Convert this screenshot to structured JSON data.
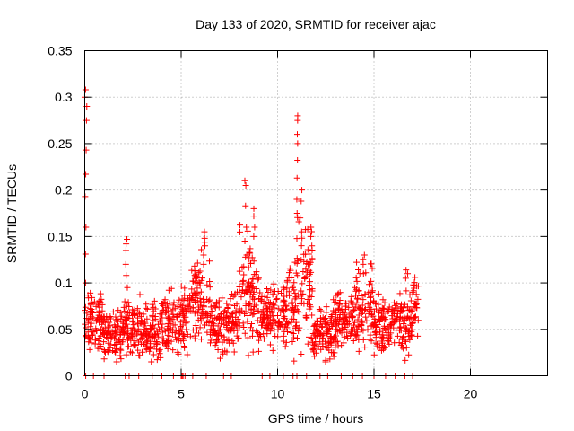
{
  "chart_data": {
    "type": "scatter",
    "title": "Day 133 of 2020, SRMTID for receiver ajac",
    "xlabel": "GPS time / hours",
    "ylabel": "SRMTID / TECUs",
    "xlim": [
      0,
      24
    ],
    "ylim": [
      0,
      0.35
    ],
    "x_ticks": [
      0,
      5,
      10,
      15,
      20
    ],
    "x_tick_labels": [
      "0",
      "5",
      "10",
      "15",
      "20"
    ],
    "y_ticks": [
      0,
      0.05,
      0.1,
      0.15,
      0.2,
      0.25,
      0.3,
      0.35
    ],
    "y_tick_labels": [
      "0",
      "0.05",
      "0.1",
      "0.15",
      "0.2",
      "0.25",
      "0.3",
      "0.35"
    ],
    "grid": true,
    "marker": "plus",
    "color": "#ff0000",
    "series": [
      {
        "name": "SRMTID",
        "segments": [
          {
            "x0": 0.0,
            "x1": 1.0,
            "base": 0.055,
            "spread": 0.022
          },
          {
            "x0": 1.0,
            "x1": 2.0,
            "base": 0.045,
            "spread": 0.02
          },
          {
            "x0": 2.0,
            "x1": 3.0,
            "base": 0.05,
            "spread": 0.022
          },
          {
            "x0": 3.0,
            "x1": 4.0,
            "base": 0.048,
            "spread": 0.022
          },
          {
            "x0": 4.0,
            "x1": 5.0,
            "base": 0.055,
            "spread": 0.022
          },
          {
            "x0": 5.0,
            "x1": 5.5,
            "base": 0.065,
            "spread": 0.028
          },
          {
            "x0": 5.5,
            "x1": 6.5,
            "base": 0.08,
            "spread": 0.035
          },
          {
            "x0": 6.5,
            "x1": 7.5,
            "base": 0.055,
            "spread": 0.02
          },
          {
            "x0": 7.5,
            "x1": 8.0,
            "base": 0.06,
            "spread": 0.022
          },
          {
            "x0": 8.0,
            "x1": 9.0,
            "base": 0.09,
            "spread": 0.04
          },
          {
            "x0": 9.0,
            "x1": 10.5,
            "base": 0.065,
            "spread": 0.022
          },
          {
            "x0": 10.5,
            "x1": 11.0,
            "base": 0.075,
            "spread": 0.03
          },
          {
            "x0": 11.0,
            "x1": 11.8,
            "base": 0.1,
            "spread": 0.05
          },
          {
            "x0": 11.8,
            "x1": 13.0,
            "base": 0.045,
            "spread": 0.02
          },
          {
            "x0": 13.0,
            "x1": 14.0,
            "base": 0.06,
            "spread": 0.02
          },
          {
            "x0": 14.0,
            "x1": 15.0,
            "base": 0.07,
            "spread": 0.03
          },
          {
            "x0": 15.0,
            "x1": 16.0,
            "base": 0.055,
            "spread": 0.022
          },
          {
            "x0": 16.0,
            "x1": 17.0,
            "base": 0.06,
            "spread": 0.025
          },
          {
            "x0": 17.0,
            "x1": 17.3,
            "base": 0.075,
            "spread": 0.03
          }
        ],
        "peaks": [
          {
            "x": 0.05,
            "y": [
              0.308,
              0.3,
              0.29,
              0.275,
              0.243,
              0.217,
              0.193,
              0.16,
              0.131,
              0.1
            ]
          },
          {
            "x": 2.15,
            "y": [
              0.147,
              0.142,
              0.135,
              0.12,
              0.108,
              0.095
            ]
          },
          {
            "x": 6.2,
            "y": [
              0.155,
              0.148,
              0.14,
              0.13,
              0.12
            ]
          },
          {
            "x": 8.35,
            "y": [
              0.21,
              0.205,
              0.183,
              0.16,
              0.145,
              0.13
            ]
          },
          {
            "x": 8.8,
            "y": [
              0.18,
              0.172,
              0.16,
              0.15
            ]
          },
          {
            "x": 11.05,
            "y": [
              0.28,
              0.275,
              0.26,
              0.25,
              0.232,
              0.213,
              0.19,
              0.175
            ]
          },
          {
            "x": 11.2,
            "y": [
              0.2,
              0.188,
              0.17,
              0.155
            ]
          },
          {
            "x": 11.75,
            "y": [
              0.16,
              0.15,
              0.14,
              0.125
            ]
          },
          {
            "x": 14.45,
            "y": [
              0.13,
              0.125,
              0.12,
              0.11
            ]
          },
          {
            "x": 16.7,
            "y": [
              0.114,
              0.11,
              0.105
            ]
          }
        ],
        "zeros": [
          0.05,
          0.45,
          1.0,
          2.1,
          2.3,
          2.8,
          3.5,
          4.0,
          4.6,
          5.0,
          5.05,
          5.1,
          5.2,
          5.6,
          6.3,
          7.2,
          7.6,
          8.0,
          9.2,
          9.6,
          10.3,
          10.8,
          11.0,
          11.5,
          12.2,
          12.6,
          13.3,
          13.9,
          14.4,
          15.0,
          15.6,
          16.1,
          16.6,
          17.0
        ]
      }
    ]
  }
}
